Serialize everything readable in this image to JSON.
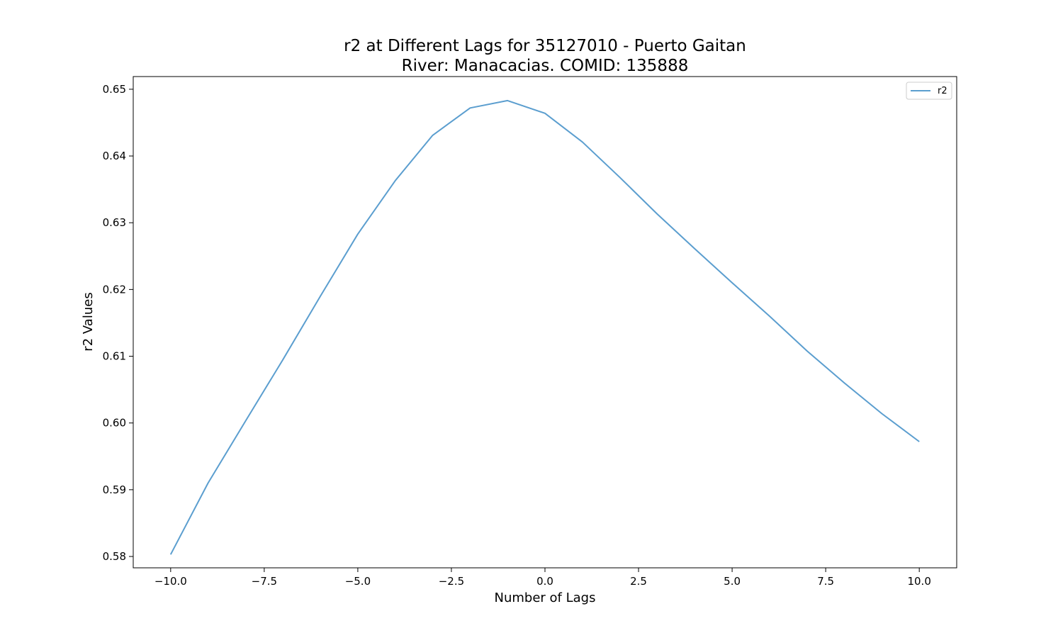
{
  "chart_data": {
    "type": "line",
    "title": "r2 at Different Lags for 35127010 - Puerto Gaitan",
    "subtitle": "River: Manacacias. COMID: 135888",
    "xlabel": "Number of Lags",
    "ylabel": "r2 Values",
    "xlim": [
      -11.0,
      11.0
    ],
    "ylim": [
      0.5783,
      0.6519
    ],
    "x_ticks": [
      -10.0,
      -7.5,
      -5.0,
      -2.5,
      0.0,
      2.5,
      5.0,
      7.5,
      10.0
    ],
    "x_tick_labels": [
      "−10.0",
      "−7.5",
      "−5.0",
      "−2.5",
      "0.0",
      "2.5",
      "5.0",
      "7.5",
      "10.0"
    ],
    "y_ticks": [
      0.58,
      0.59,
      0.6,
      0.61,
      0.62,
      0.63,
      0.64,
      0.65
    ],
    "y_tick_labels": [
      "0.58",
      "0.59",
      "0.60",
      "0.61",
      "0.62",
      "0.63",
      "0.64",
      "0.65"
    ],
    "grid": false,
    "legend_position": "top-right",
    "series": [
      {
        "name": "r2",
        "color": "#5b9ecf",
        "x": [
          -10,
          -9,
          -8,
          -7,
          -6,
          -5,
          -4,
          -3,
          -2,
          -1,
          0,
          1,
          2,
          3,
          4,
          5,
          6,
          7,
          8,
          9,
          10
        ],
        "y": [
          0.5803,
          0.591,
          0.6003,
          0.6095,
          0.619,
          0.6283,
          0.6363,
          0.6431,
          0.6472,
          0.6483,
          0.6464,
          0.6421,
          0.6368,
          0.6313,
          0.6261,
          0.621,
          0.616,
          0.6108,
          0.606,
          0.6014,
          0.5972
        ]
      }
    ]
  }
}
